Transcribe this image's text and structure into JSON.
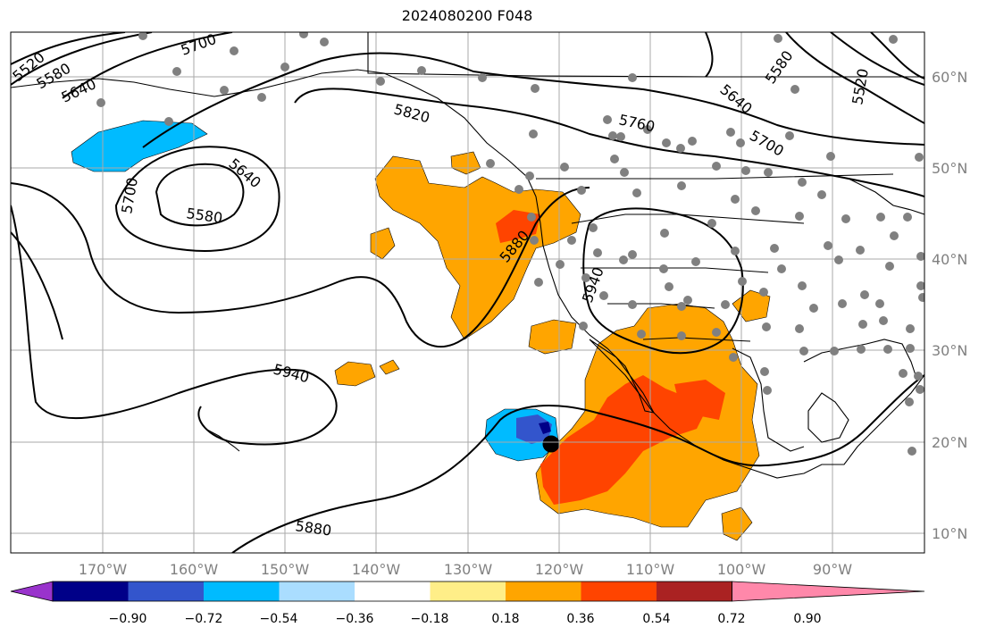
{
  "title": "2024080200 F048",
  "axes": {
    "lon_labels": [
      "170°W",
      "160°W",
      "150°W",
      "140°W",
      "130°W",
      "120°W",
      "110°W",
      "100°W",
      "90°W"
    ],
    "lat_labels": [
      "60°N",
      "50°N",
      "40°N",
      "30°N",
      "20°N",
      "10°N"
    ]
  },
  "contours": {
    "labels": [
      {
        "text": "5520",
        "id": "c5520a"
      },
      {
        "text": "5580",
        "id": "c5580a"
      },
      {
        "text": "5640",
        "id": "c5640a"
      },
      {
        "text": "5700",
        "id": "c5700a"
      },
      {
        "text": "5820",
        "id": "c5820"
      },
      {
        "text": "5760",
        "id": "c5760"
      },
      {
        "text": "5640",
        "id": "c5640b"
      },
      {
        "text": "5700",
        "id": "c5700b"
      },
      {
        "text": "5580",
        "id": "c5580b"
      },
      {
        "text": "5520",
        "id": "c5520b"
      },
      {
        "text": "5700",
        "id": "c5700c"
      },
      {
        "text": "5640",
        "id": "c5640c"
      },
      {
        "text": "5580",
        "id": "c5580c"
      },
      {
        "text": "5880",
        "id": "c5880a"
      },
      {
        "text": "5940",
        "id": "c5940a"
      },
      {
        "text": "5940",
        "id": "c5940b"
      },
      {
        "text": "5880",
        "id": "c5880b"
      }
    ]
  },
  "colorbar": {
    "colors": [
      "#9933cc",
      "#000088",
      "#3355cc",
      "#00bbff",
      "#aaddff",
      "#ffffff",
      "#ffee88",
      "#ffa500",
      "#ff4400",
      "#aa2222",
      "#ff88aa"
    ],
    "tick_labels": [
      "−0.90",
      "−0.72",
      "−0.54",
      "−0.36",
      "−0.18",
      "0.18",
      "0.36",
      "0.54",
      "0.72",
      "0.90"
    ]
  },
  "colors": {
    "frame": "#000000",
    "grid": "#aaaaaa",
    "station": "#808080",
    "lat_label": "#808080"
  }
}
